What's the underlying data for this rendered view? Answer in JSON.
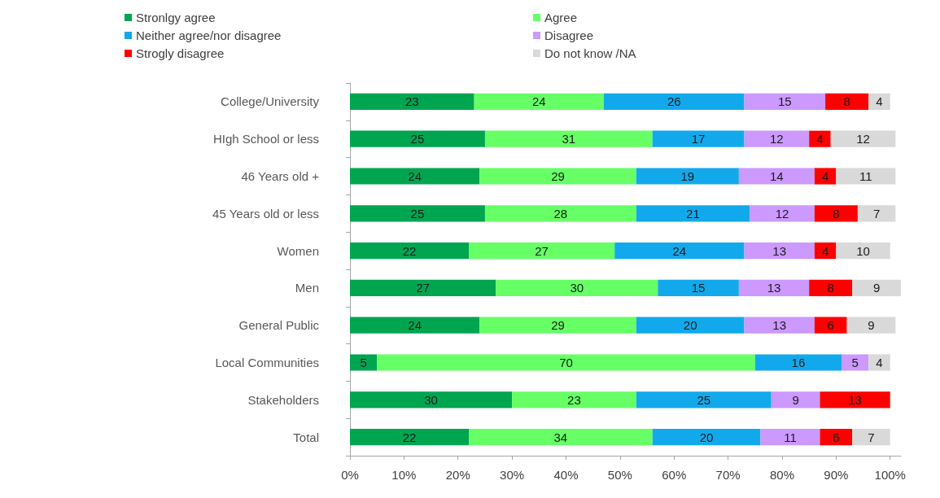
{
  "chart_data": {
    "type": "bar",
    "orientation": "horizontal",
    "stacked": true,
    "categories": [
      "College/University",
      "HIgh School or less",
      "46 Years old +",
      "45 Years old or less",
      "Women",
      "Men",
      "General Public",
      "Local Communities",
      "Stakeholders",
      "Total"
    ],
    "series": [
      {
        "name": "Stronlgy agree",
        "color": "#00a550",
        "values": [
          23,
          25,
          24,
          25,
          22,
          27,
          24,
          5,
          30,
          22
        ]
      },
      {
        "name": "Agree",
        "color": "#66ff66",
        "values": [
          24,
          31,
          29,
          28,
          27,
          30,
          29,
          70,
          23,
          34
        ]
      },
      {
        "name": "Neither agree/nor disagree",
        "color": "#12a9ec",
        "values": [
          26,
          17,
          19,
          21,
          24,
          15,
          20,
          16,
          25,
          20
        ]
      },
      {
        "name": "Disagree",
        "color": "#cc99ff",
        "values": [
          15,
          12,
          14,
          12,
          13,
          13,
          13,
          5,
          9,
          11
        ]
      },
      {
        "name": "Strogly disagree",
        "color": "#ff0000",
        "values": [
          8,
          4,
          4,
          8,
          4,
          8,
          6,
          null,
          13,
          6
        ]
      },
      {
        "name": "Do not know /NA",
        "color": "#d9d9d9",
        "values": [
          4,
          12,
          11,
          7,
          10,
          9,
          9,
          4,
          null,
          7
        ]
      }
    ],
    "xlim": [
      0,
      102
    ],
    "xticks": [
      {
        "value": 0,
        "label": "0%"
      },
      {
        "value": 10,
        "label": "10%"
      },
      {
        "value": 20,
        "label": "20%"
      },
      {
        "value": 30,
        "label": "30%"
      },
      {
        "value": 40,
        "label": "40%"
      },
      {
        "value": 50,
        "label": "50%"
      },
      {
        "value": 60,
        "label": "60%"
      },
      {
        "value": 70,
        "label": "70%"
      },
      {
        "value": 80,
        "label": "80%"
      },
      {
        "value": 90,
        "label": "90%"
      },
      {
        "value": 100,
        "label": "100%"
      }
    ],
    "data_labels": true,
    "legend": "top",
    "grid": false
  }
}
